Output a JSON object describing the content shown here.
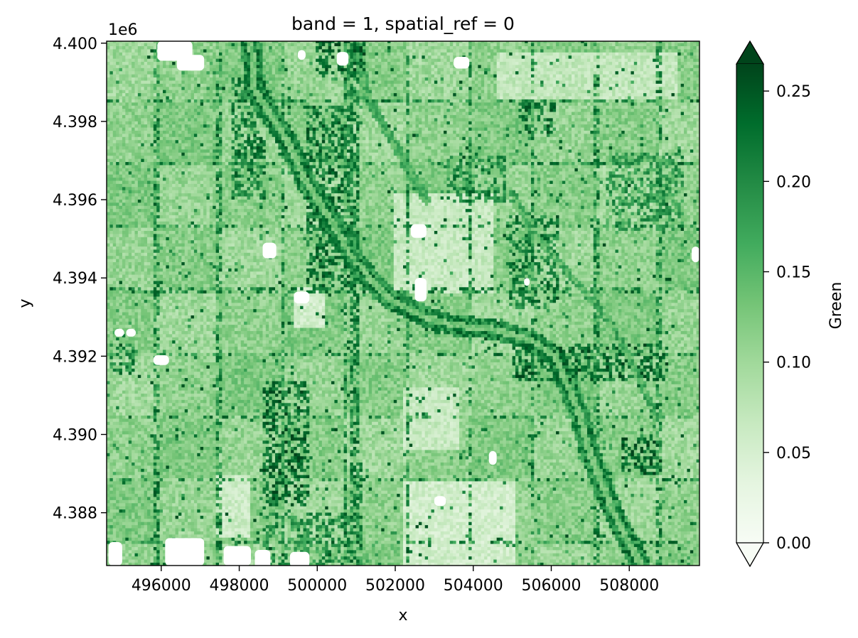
{
  "chart_data": {
    "type": "heatmap",
    "title": "band = 1, spatial_ref = 0",
    "xlabel": "x",
    "ylabel": "y",
    "y_offset_label": "1e6",
    "xlim": [
      494600,
      509800
    ],
    "ylim": [
      4386650,
      4400050
    ],
    "x_ticks": [
      {
        "value": 496000,
        "label": "496000"
      },
      {
        "value": 498000,
        "label": "498000"
      },
      {
        "value": 500000,
        "label": "500000"
      },
      {
        "value": 502000,
        "label": "502000"
      },
      {
        "value": 504000,
        "label": "504000"
      },
      {
        "value": 506000,
        "label": "506000"
      },
      {
        "value": 508000,
        "label": "508000"
      }
    ],
    "y_ticks": [
      {
        "value": 4388000,
        "label": "4.388"
      },
      {
        "value": 4390000,
        "label": "4.390"
      },
      {
        "value": 4392000,
        "label": "4.392"
      },
      {
        "value": 4394000,
        "label": "4.394"
      },
      {
        "value": 4396000,
        "label": "4.396"
      },
      {
        "value": 4398000,
        "label": "4.398"
      },
      {
        "value": 4400000,
        "label": "4.400"
      }
    ],
    "colorbar": {
      "label": "Green",
      "colormap": "Greens",
      "extend": "both",
      "range": [
        0.0,
        0.265
      ],
      "ticks": [
        {
          "value": 0.0,
          "label": "0.00"
        },
        {
          "value": 0.05,
          "label": "0.05"
        },
        {
          "value": 0.1,
          "label": "0.10"
        },
        {
          "value": 0.15,
          "label": "0.15"
        },
        {
          "value": 0.2,
          "label": "0.20"
        },
        {
          "value": 0.25,
          "label": "0.25"
        }
      ],
      "color_stops": [
        "#f7fcf5",
        "#e5f5e0",
        "#c7e9c0",
        "#a1d99b",
        "#74c476",
        "#41ab5d",
        "#238b45",
        "#006d2c",
        "#00441b"
      ]
    },
    "features": {
      "river": [
        [
          4400000,
          498300
        ],
        [
          4398800,
          498400
        ],
        [
          4397400,
          499300
        ],
        [
          4396500,
          499700
        ],
        [
          4395400,
          500400
        ],
        [
          4394400,
          501000
        ],
        [
          4393500,
          501800
        ],
        [
          4393000,
          502800
        ],
        [
          4392800,
          503500
        ],
        [
          4392700,
          504500
        ],
        [
          4392400,
          505500
        ],
        [
          4392000,
          506100
        ],
        [
          4390600,
          506700
        ],
        [
          4389500,
          507000
        ],
        [
          4388000,
          507600
        ],
        [
          4386650,
          508300
        ]
      ],
      "creek": [
        [
          4400000,
          501000
        ],
        [
          4398600,
          501300
        ],
        [
          4397400,
          502000
        ],
        [
          4396000,
          502800
        ]
      ],
      "canal": [
        [
          4396200,
          505000
        ],
        [
          4395200,
          505500
        ],
        [
          4394400,
          506200
        ],
        [
          4393600,
          506900
        ],
        [
          4392600,
          507700
        ],
        [
          4391600,
          508200
        ],
        [
          4390400,
          508700
        ]
      ],
      "corridor_ns": [
        [
          4400000,
          500900
        ],
        [
          4386650,
          501000
        ]
      ],
      "dense_zones": [
        {
          "x0": 497800,
          "x1": 498700,
          "y0": 4396000,
          "y1": 4399200,
          "level": 0.17
        },
        {
          "x0": 499700,
          "x1": 500900,
          "y0": 4393600,
          "y1": 4398400,
          "level": 0.18
        },
        {
          "x0": 498600,
          "x1": 499800,
          "y0": 4388200,
          "y1": 4391400,
          "level": 0.19
        },
        {
          "x0": 500000,
          "x1": 501200,
          "y0": 4399200,
          "y1": 4400050,
          "level": 0.2
        },
        {
          "x0": 503300,
          "x1": 504800,
          "y0": 4395900,
          "y1": 4397100,
          "level": 0.16
        },
        {
          "x0": 504900,
          "x1": 506200,
          "y0": 4393200,
          "y1": 4395600,
          "level": 0.17
        },
        {
          "x0": 505200,
          "x1": 506100,
          "y0": 4397700,
          "y1": 4398600,
          "level": 0.18
        },
        {
          "x0": 505000,
          "x1": 509000,
          "y0": 4391400,
          "y1": 4392300,
          "level": 0.19
        },
        {
          "x0": 507400,
          "x1": 509400,
          "y0": 4395200,
          "y1": 4397200,
          "level": 0.14
        },
        {
          "x0": 507800,
          "x1": 508800,
          "y0": 4389000,
          "y1": 4389900,
          "level": 0.2
        },
        {
          "x0": 498600,
          "x1": 500800,
          "y0": 4386650,
          "y1": 4388000,
          "level": 0.15
        },
        {
          "x0": 494700,
          "x1": 495300,
          "y0": 4391500,
          "y1": 4392300,
          "level": 0.16
        }
      ],
      "light_zones": [
        {
          "x0": 502200,
          "x1": 505100,
          "y0": 4386650,
          "y1": 4388800,
          "level": 0.035
        },
        {
          "x0": 502000,
          "x1": 504500,
          "y0": 4393600,
          "y1": 4396200,
          "level": 0.045
        },
        {
          "x0": 504600,
          "x1": 509200,
          "y0": 4398600,
          "y1": 4399800,
          "level": 0.05
        },
        {
          "x0": 499400,
          "x1": 500200,
          "y0": 4392700,
          "y1": 4393800,
          "level": 0.035
        },
        {
          "x0": 497400,
          "x1": 498300,
          "y0": 4387400,
          "y1": 4389000,
          "level": 0.04
        },
        {
          "x0": 502200,
          "x1": 503600,
          "y0": 4389600,
          "y1": 4391200,
          "level": 0.045
        }
      ],
      "nodata_patches": [
        {
          "x": 495900,
          "y": 4399800,
          "w": 900,
          "h": 500
        },
        {
          "x": 496400,
          "y": 4399500,
          "w": 700,
          "h": 400
        },
        {
          "x": 497600,
          "y": 4386900,
          "w": 700,
          "h": 500
        },
        {
          "x": 496100,
          "y": 4387000,
          "w": 1000,
          "h": 700
        },
        {
          "x": 494650,
          "y": 4386950,
          "w": 350,
          "h": 600
        },
        {
          "x": 498400,
          "y": 4386800,
          "w": 400,
          "h": 500
        },
        {
          "x": 499300,
          "y": 4386800,
          "w": 500,
          "h": 400
        },
        {
          "x": 495800,
          "y": 4391900,
          "w": 400,
          "h": 250
        },
        {
          "x": 494800,
          "y": 4392600,
          "w": 250,
          "h": 200
        },
        {
          "x": 495100,
          "y": 4392600,
          "w": 250,
          "h": 200
        },
        {
          "x": 498600,
          "y": 4394700,
          "w": 350,
          "h": 400
        },
        {
          "x": 502400,
          "y": 4395200,
          "w": 400,
          "h": 350
        },
        {
          "x": 502500,
          "y": 4393700,
          "w": 300,
          "h": 600
        },
        {
          "x": 503000,
          "y": 4388300,
          "w": 300,
          "h": 250
        },
        {
          "x": 504400,
          "y": 4389400,
          "w": 200,
          "h": 350
        },
        {
          "x": 503500,
          "y": 4399500,
          "w": 400,
          "h": 300
        },
        {
          "x": 499400,
          "y": 4393500,
          "w": 400,
          "h": 300
        },
        {
          "x": 509600,
          "y": 4394600,
          "w": 200,
          "h": 400
        },
        {
          "x": 505300,
          "y": 4393900,
          "w": 150,
          "h": 200
        },
        {
          "x": 500500,
          "y": 4399600,
          "w": 300,
          "h": 350
        },
        {
          "x": 499500,
          "y": 4399700,
          "w": 200,
          "h": 250
        }
      ]
    }
  }
}
